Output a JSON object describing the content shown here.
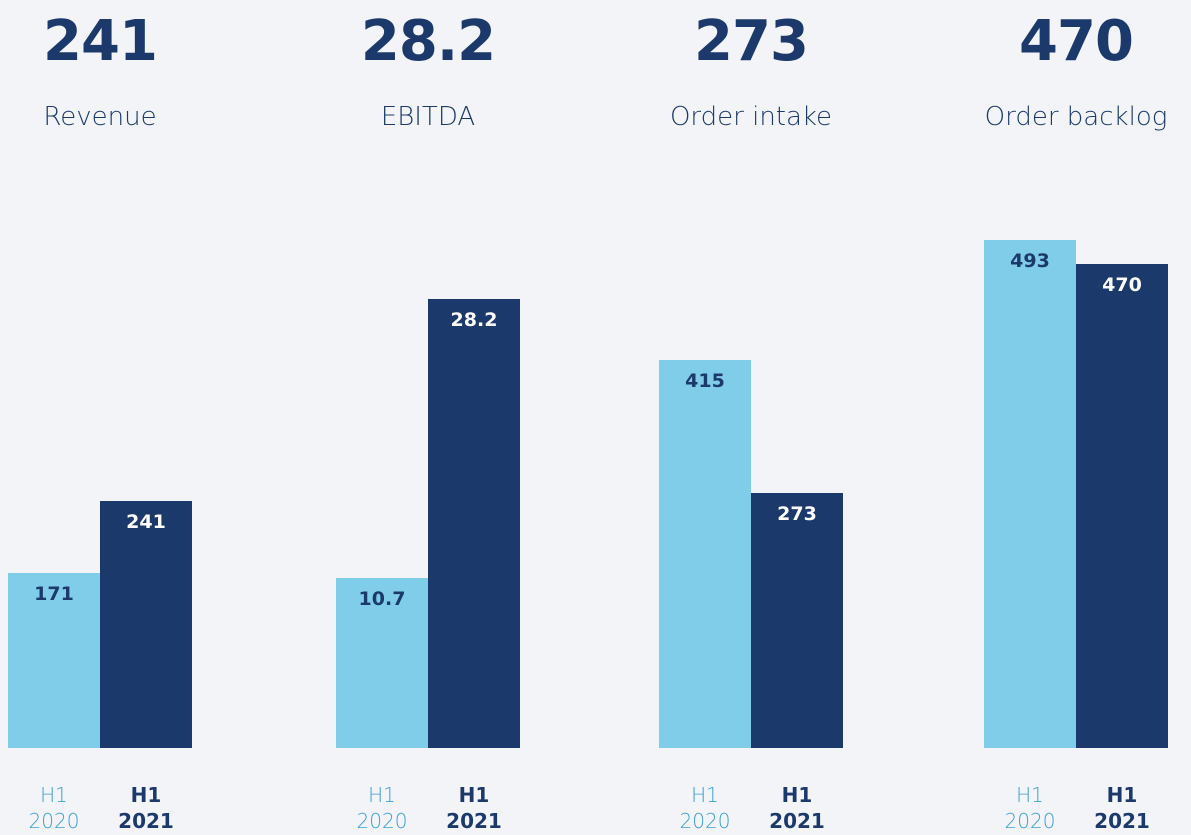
{
  "chart_data": [
    {
      "type": "bar",
      "title": "241",
      "subtitle": "Revenue",
      "categories": [
        "H1 2020",
        "H1 2021"
      ],
      "values": [
        171,
        241
      ],
      "colors": [
        "#80cde9",
        "#1b3a6b"
      ]
    },
    {
      "type": "bar",
      "title": "28.2",
      "subtitle": "EBITDA",
      "categories": [
        "H1 2020",
        "H1 2021"
      ],
      "values": [
        10.7,
        28.2
      ],
      "colors": [
        "#80cde9",
        "#1b3a6b"
      ]
    },
    {
      "type": "bar",
      "title": "273",
      "subtitle": "Order intake",
      "categories": [
        "H1 2020",
        "H1 2021"
      ],
      "values": [
        415,
        273
      ],
      "colors": [
        "#80cde9",
        "#1b3a6b"
      ]
    },
    {
      "type": "bar",
      "title": "470",
      "subtitle": "Order backlog",
      "categories": [
        "H1 2020",
        "H1 2021"
      ],
      "values": [
        493,
        470
      ],
      "colors": [
        "#80cde9",
        "#1b3a6b"
      ]
    }
  ]
}
